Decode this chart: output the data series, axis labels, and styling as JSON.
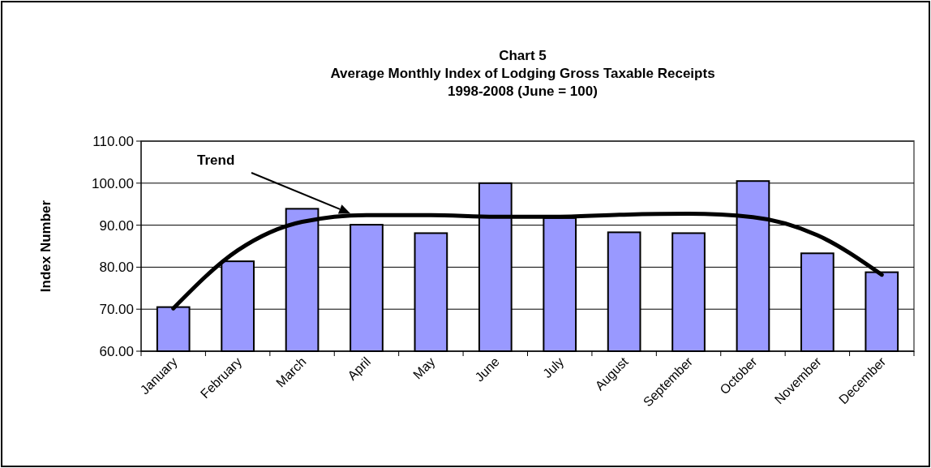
{
  "chart_data": {
    "type": "bar",
    "title": "Chart 5\nAverage Monthly Index of Lodging Gross Taxable Receipts\n1998-2008 (June = 100)",
    "ylabel": "Index Number",
    "categories": [
      "January",
      "February",
      "March",
      "April",
      "May",
      "June",
      "July",
      "August",
      "September",
      "October",
      "November",
      "December"
    ],
    "series": [
      {
        "color": "#9999ff",
        "values": [
          70.5,
          81.4,
          93.9,
          90.1,
          88.1,
          100,
          91.7,
          88.3,
          88.1,
          100.5,
          83.3,
          78.8
        ]
      },
      {
        "type": "line",
        "name": "Trend",
        "color": "#000000",
        "values": [
          70.2,
          84.0,
          90.8,
          92.4,
          92.4,
          92.0,
          92.0,
          92.5,
          92.7,
          91.9,
          87.6,
          78.2
        ]
      }
    ],
    "ylim": [
      60,
      110
    ],
    "yticks": [
      {
        "value": 60,
        "label": "60.00"
      },
      {
        "value": 70,
        "label": "70.00"
      },
      {
        "value": 80,
        "label": "80.00"
      },
      {
        "value": 90,
        "label": "90.00"
      },
      {
        "value": 100,
        "label": "100.00"
      },
      {
        "value": 110,
        "label": "110.00"
      }
    ],
    "grid": "y"
  }
}
